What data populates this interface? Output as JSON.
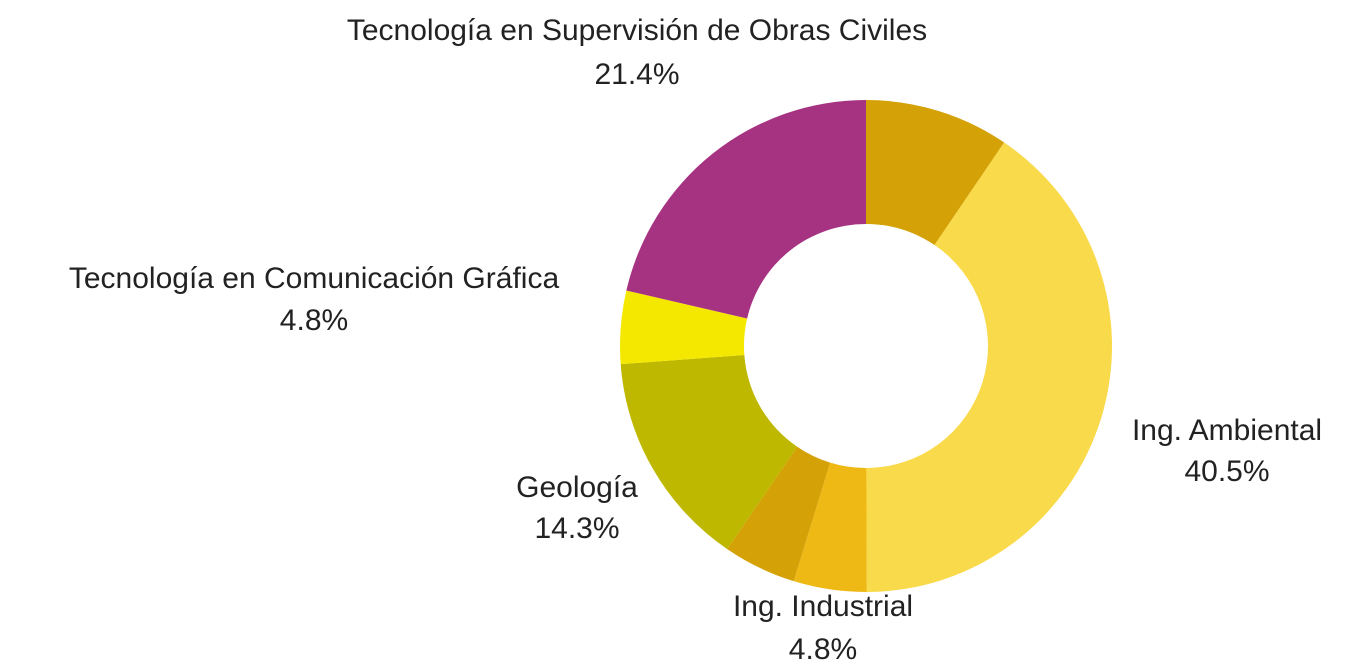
{
  "chart_data": {
    "type": "donut",
    "categories": [
      null,
      "Ing. Ambiental",
      "Ing. Industrial",
      null,
      "Geología",
      "Tecnología en Comunicación Gráfica",
      "Tecnología en Supervisión de Obras Civiles"
    ],
    "values": [
      9.5,
      40.5,
      4.8,
      4.8,
      14.3,
      4.8,
      21.4
    ],
    "value_labels": [
      null,
      "40.5%",
      "4.8%",
      null,
      "14.3%",
      "4.8%",
      "21.4%"
    ],
    "colors": [
      "#d4a106",
      "#f9da4a",
      "#eeb914",
      "#d4a106",
      "#bfb800",
      "#f5e800",
      "#a63382"
    ]
  }
}
